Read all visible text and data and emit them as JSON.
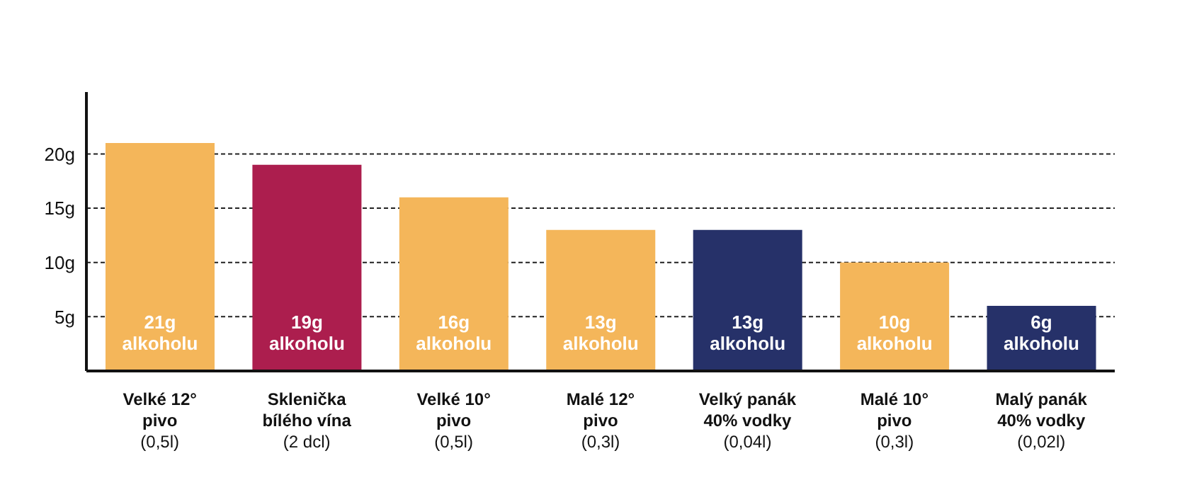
{
  "chart_data": {
    "type": "bar",
    "categories": [
      "Velké 12°\npivo\n(0,5l)",
      "Sklenička\nbílého vína\n(2 dcl)",
      "Velké 10°\npivo\n(0,5l)",
      "Malé 12°\npivo\n(0,3l)",
      "Velký panák\n40% vodky\n(0,04l)",
      "Malé 10°\npivo\n(0,3l)",
      "Malý panák\n40% vodky\n(0,02l)"
    ],
    "values": [
      21,
      19,
      16,
      13,
      13,
      10,
      6
    ],
    "colors": [
      "#f4b65a",
      "#ac1e4e",
      "#f4b65a",
      "#f4b65a",
      "#263169",
      "#f4b65a",
      "#263169"
    ],
    "value_labels": [
      "21g alkoholu",
      "19g alkoholu",
      "16g alkoholu",
      "13g alkoholu",
      "13g alkoholu",
      "10g alkoholu",
      "6g alkoholu"
    ],
    "ylim": [
      0,
      25.7
    ],
    "yticks": [
      {
        "value": 5,
        "label": "5g"
      },
      {
        "value": 10,
        "label": "10g"
      },
      {
        "value": 15,
        "label": "15g"
      },
      {
        "value": 20,
        "label": "20g"
      }
    ],
    "grid": "y"
  }
}
